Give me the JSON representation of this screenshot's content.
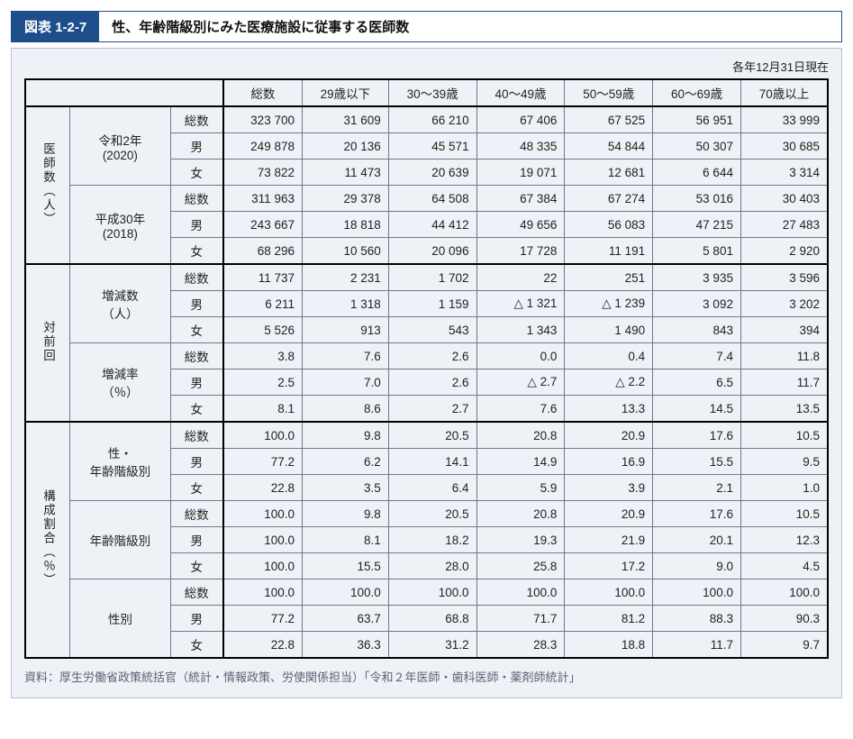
{
  "header": {
    "tag": "図表 1-2-7",
    "title": "性、年齢階級別にみた医療施設に従事する医師数"
  },
  "as_of": "各年12月31日現在",
  "columns": [
    "総数",
    "29歳以下",
    "30～39歳",
    "40～49歳",
    "50～59歳",
    "60～69歳",
    "70歳以上"
  ],
  "row_labels": {
    "gender": [
      "総数",
      "男",
      "女"
    ]
  },
  "sections": [
    {
      "vlabel": "医師数（人）",
      "groups": [
        {
          "label": "令和2年\n(2020)",
          "rows": [
            [
              "323 700",
              "31 609",
              "66 210",
              "67 406",
              "67 525",
              "56 951",
              "33 999"
            ],
            [
              "249 878",
              "20 136",
              "45 571",
              "48 335",
              "54 844",
              "50 307",
              "30 685"
            ],
            [
              "73 822",
              "11 473",
              "20 639",
              "19 071",
              "12 681",
              "6 644",
              "3 314"
            ]
          ]
        },
        {
          "label": "平成30年\n(2018)",
          "rows": [
            [
              "311 963",
              "29 378",
              "64 508",
              "67 384",
              "67 274",
              "53 016",
              "30 403"
            ],
            [
              "243 667",
              "18 818",
              "44 412",
              "49 656",
              "56 083",
              "47 215",
              "27 483"
            ],
            [
              "68 296",
              "10 560",
              "20 096",
              "17 728",
              "11 191",
              "5 801",
              "2 920"
            ]
          ]
        }
      ]
    },
    {
      "vlabel": "対前回",
      "groups": [
        {
          "label": "増減数\n（人）",
          "rows": [
            [
              "11 737",
              "2 231",
              "1 702",
              "22",
              "251",
              "3 935",
              "3 596"
            ],
            [
              "6 211",
              "1 318",
              "1 159",
              "△ 1 321",
              "△ 1 239",
              "3 092",
              "3 202"
            ],
            [
              "5 526",
              "913",
              "543",
              "1 343",
              "1 490",
              "843",
              "394"
            ]
          ]
        },
        {
          "label": "増減率\n（％）",
          "rows": [
            [
              "3.8",
              "7.6",
              "2.6",
              "0.0",
              "0.4",
              "7.4",
              "11.8"
            ],
            [
              "2.5",
              "7.0",
              "2.6",
              "△ 2.7",
              "△ 2.2",
              "6.5",
              "11.7"
            ],
            [
              "8.1",
              "8.6",
              "2.7",
              "7.6",
              "13.3",
              "14.5",
              "13.5"
            ]
          ]
        }
      ]
    },
    {
      "vlabel": "構成割合（％）",
      "groups": [
        {
          "label": "性・\n年齢階級別",
          "rows": [
            [
              "100.0",
              "9.8",
              "20.5",
              "20.8",
              "20.9",
              "17.6",
              "10.5"
            ],
            [
              "77.2",
              "6.2",
              "14.1",
              "14.9",
              "16.9",
              "15.5",
              "9.5"
            ],
            [
              "22.8",
              "3.5",
              "6.4",
              "5.9",
              "3.9",
              "2.1",
              "1.0"
            ]
          ]
        },
        {
          "label": "年齢階級別",
          "rows": [
            [
              "100.0",
              "9.8",
              "20.5",
              "20.8",
              "20.9",
              "17.6",
              "10.5"
            ],
            [
              "100.0",
              "8.1",
              "18.2",
              "19.3",
              "21.9",
              "20.1",
              "12.3"
            ],
            [
              "100.0",
              "15.5",
              "28.0",
              "25.8",
              "17.2",
              "9.0",
              "4.5"
            ]
          ]
        },
        {
          "label": "性別",
          "rows": [
            [
              "100.0",
              "100.0",
              "100.0",
              "100.0",
              "100.0",
              "100.0",
              "100.0"
            ],
            [
              "77.2",
              "63.7",
              "68.8",
              "71.7",
              "81.2",
              "88.3",
              "90.3"
            ],
            [
              "22.8",
              "36.3",
              "31.2",
              "28.3",
              "18.8",
              "11.7",
              "9.7"
            ]
          ]
        }
      ]
    }
  ],
  "source": "資料：厚生労働省政策統括官（統計・情報政策、労使関係担当）「令和２年医師・歯科医師・薬剤師統計」",
  "colors": {
    "accent": "#1e4e8c",
    "panel_bg": "#eef1f6",
    "border": "#6b7a90",
    "source_text": "#5a6475"
  }
}
